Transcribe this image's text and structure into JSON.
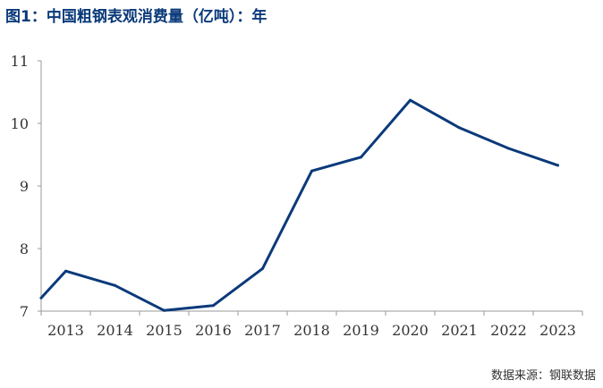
{
  "figure": {
    "title": "图1：中国粗钢表观消费量（亿吨）：年",
    "source": "数据来源：钢联数据"
  },
  "chart_data": {
    "type": "line",
    "title": "图1：中国粗钢表观消费量（亿吨）：年",
    "xlabel": "",
    "ylabel": "",
    "unit": "亿吨",
    "ylim": [
      7,
      11
    ],
    "yticks": [
      "7",
      "8",
      "9",
      "10",
      "11"
    ],
    "grid": false,
    "legend": "none",
    "line_color": "#0b3a7a",
    "x": [
      2012.5,
      2013,
      2014,
      2015,
      2016,
      2017,
      2018,
      2019,
      2020,
      2021,
      2022,
      2023
    ],
    "categories": [
      "2013",
      "2014",
      "2015",
      "2016",
      "2017",
      "2018",
      "2019",
      "2020",
      "2021",
      "2022",
      "2023"
    ],
    "series": [
      {
        "values": [
          7.21,
          7.64,
          7.41,
          7.01,
          7.09,
          7.68,
          9.24,
          9.46,
          10.37,
          9.93,
          9.6,
          9.33
        ]
      }
    ]
  }
}
